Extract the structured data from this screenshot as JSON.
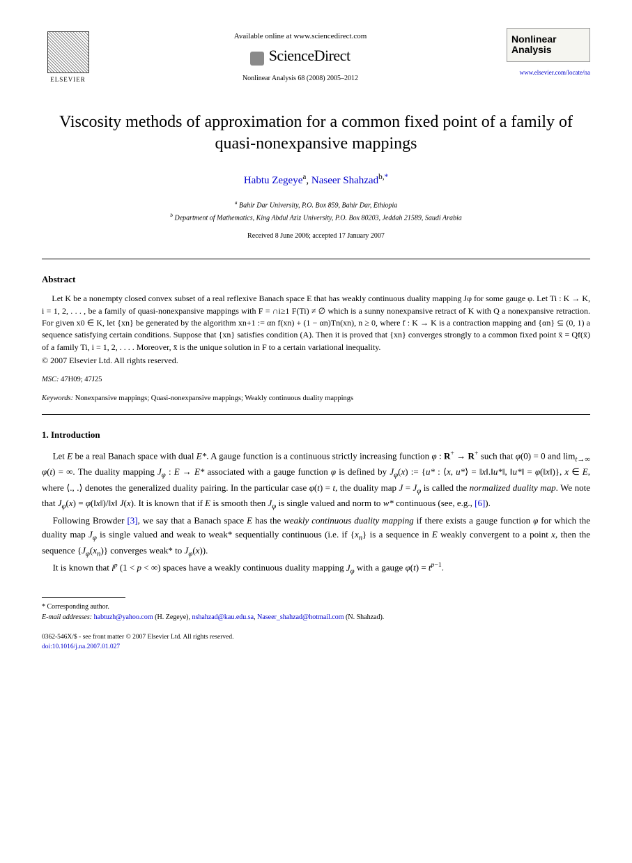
{
  "header": {
    "elsevier": "ELSEVIER",
    "available_online": "Available online at www.sciencedirect.com",
    "sciencedirect": "ScienceDirect",
    "journal_ref": "Nonlinear Analysis 68 (2008) 2005–2012",
    "journal_name_1": "Nonlinear",
    "journal_name_2": "Analysis",
    "journal_url": "www.elsevier.com/locate/na"
  },
  "title": "Viscosity methods of approximation for a common fixed point of a family of quasi-nonexpansive mappings",
  "authors": {
    "a1_name": "Habtu Zegeye",
    "a1_sup": "a",
    "sep": ", ",
    "a2_name": "Naseer Shahzad",
    "a2_sup": "b,",
    "corr": "*"
  },
  "affiliations": {
    "a": "Bahir Dar University, P.O. Box 859, Bahir Dar, Ethiopia",
    "b": "Department of Mathematics, King Abdul Aziz University, P.O. Box 80203, Jeddah 21589, Saudi Arabia"
  },
  "dates": "Received 8 June 2006; accepted 17 January 2007",
  "abstract": {
    "heading": "Abstract",
    "body": "Let K be a nonempty closed convex subset of a real reflexive Banach space E that has weakly continuous duality mapping Jφ for some gauge φ. Let Ti : K → K, i = 1, 2, . . . , be a family of quasi-nonexpansive mappings with F = ∩i≥1 F(Ti) ≠ ∅ which is a sunny nonexpansive retract of K with Q a nonexpansive retraction. For given x0 ∈ K, let {xn} be generated by the algorithm xn+1 := αn f(xn) + (1 − αn)Tn(xn), n ≥ 0, where f : K → K is a contraction mapping and {αn} ⊆ (0, 1) a sequence satisfying certain conditions. Suppose that {xn} satisfies condition (A). Then it is proved that {xn} converges strongly to a common fixed point x̄ = Qf(x̄) of a family Ti, i = 1, 2, . . . . Moreover, x̄ is the unique solution in F to a certain variational inequality.",
    "copyright": "© 2007 Elsevier Ltd. All rights reserved."
  },
  "msc": {
    "label": "MSC:",
    "codes": "47H09; 47J25"
  },
  "keywords": {
    "label": "Keywords:",
    "text": "Nonexpansive mappings; Quasi-nonexpansive mappings; Weakly continuous duality mappings"
  },
  "intro": {
    "heading": "1.  Introduction",
    "p1": "Let E be a real Banach space with dual E*. A gauge function is a continuous strictly increasing function φ : R+ → R+ such that φ(0) = 0 and limt→∞ φ(t) = ∞. The duality mapping Jφ : E → E* associated with a gauge function φ is defined by Jφ(x) := {u* : ⟨x, u*⟩ = ‖x‖.‖u*‖, ‖u*‖ = φ(‖x‖)}, x ∈ E, where ⟨., .⟩ denotes the generalized duality pairing. In the particular case φ(t) = t, the duality map J = Jφ is called the normalized duality map. We note that Jφ(x) = φ(‖x‖)/‖x‖ J(x). It is known that if E is smooth then Jφ is single valued and norm to w* continuous (see, e.g., [6]).",
    "p2": "Following Browder [3], we say that a Banach space E has the weakly continuous duality mapping if there exists a gauge function φ for which the duality map Jφ is single valued and weak to weak* sequentially continuous (i.e. if {xn} is a sequence in E weakly convergent to a point x, then the sequence {Jφ(xn)} converges weak* to Jφ(x)).",
    "p3": "It is known that lp (1 < p < ∞) spaces have a weakly continuous duality mapping Jφ with a gauge φ(t) = tp−1."
  },
  "footnotes": {
    "corr_label": "* Corresponding author.",
    "email_label": "E-mail addresses:",
    "e1": "habtuzh@yahoo.com",
    "e1_who": "(H. Zegeye),",
    "e2": "nshahzad@kau.edu.sa",
    "e2_sep": ",",
    "e3": "Naseer_shahzad@hotmail.com",
    "e3_who": "(N. Shahzad)."
  },
  "footer": {
    "issn": "0362-546X/$ - see front matter © 2007 Elsevier Ltd. All rights reserved.",
    "doi": "doi:10.1016/j.na.2007.01.027"
  }
}
